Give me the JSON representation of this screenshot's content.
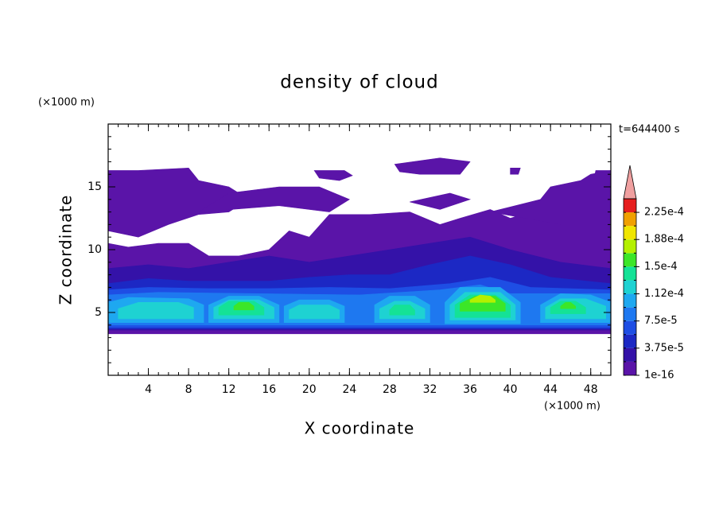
{
  "chart_data": {
    "type": "contour",
    "title": "density of cloud",
    "x_label": "X coordinate",
    "y_label": "Z coordinate",
    "x_unit": "(×1000 m)",
    "y_unit": "(×1000 m)",
    "time_label": "t=644400 s",
    "xlim": [
      0,
      50
    ],
    "ylim": [
      0,
      20
    ],
    "xticks": [
      4,
      8,
      12,
      16,
      20,
      24,
      28,
      32,
      36,
      40,
      44,
      48
    ],
    "yticks": [
      5,
      10,
      15
    ],
    "xminor_step": 1,
    "yminor_step": 1,
    "colorbar": {
      "levels": [
        1e-16,
        1.875e-05,
        3.75e-05,
        5.625e-05,
        7.5e-05,
        9.375e-05,
        0.0001125,
        0.00013125,
        0.00015,
        0.00016875,
        0.0001875,
        0.00020625,
        0.000225,
        0.00024375
      ],
      "colors": [
        "#5a14a8",
        "#3412a8",
        "#1c28c4",
        "#1e4ee4",
        "#1e78f0",
        "#1ea8f0",
        "#1ed2d2",
        "#14e296",
        "#3ce628",
        "#b4f000",
        "#f0e600",
        "#f0a000",
        "#e61e1e"
      ],
      "over_color": "#f0a0a0",
      "ticks": [
        {
          "value": 0.000225,
          "label": "2.25e-4"
        },
        {
          "value": 0.0001875,
          "label": "1.88e-4"
        },
        {
          "value": 0.00015,
          "label": "1.5e-4"
        },
        {
          "value": 0.0001125,
          "label": "1.12e-4"
        },
        {
          "value": 7.5e-05,
          "label": "7.5e-5"
        },
        {
          "value": 3.75e-05,
          "label": "3.75e-5"
        },
        1e-16
      ]
    },
    "regions": [
      {
        "value": 1e-16,
        "x": [
          0,
          50,
          50,
          48.5,
          48,
          45,
          42,
          40,
          38,
          35,
          33,
          30,
          26,
          22,
          20,
          18,
          16,
          13,
          10,
          8,
          5,
          2,
          0
        ],
        "z": [
          3.3,
          3.3,
          16.3,
          16.3,
          14.5,
          13.5,
          13,
          12.5,
          13.2,
          12.5,
          12,
          13,
          12.8,
          12.8,
          11,
          11.5,
          10,
          9.5,
          9.5,
          10.5,
          10.5,
          10.2,
          10.5
        ]
      },
      {
        "value": 1e-16,
        "x": [
          0,
          3,
          6,
          9,
          12,
          14,
          12,
          9,
          8,
          3,
          0
        ],
        "z": [
          11.5,
          11,
          12,
          12.8,
          13,
          14,
          15,
          15.5,
          16.5,
          16.3,
          16.3
        ]
      },
      {
        "value": 1e-16,
        "x": [
          9,
          17,
          22,
          24,
          21,
          17,
          12
        ],
        "z": [
          13,
          13.5,
          13,
          14,
          15,
          15,
          14.5
        ]
      },
      {
        "value": 1e-16,
        "x": [
          20.5,
          23.5,
          24.3,
          23,
          21
        ],
        "z": [
          16.3,
          16.3,
          15.9,
          15.5,
          15.7
        ]
      },
      {
        "value": 1e-16,
        "x": [
          28.5,
          33,
          36,
          35,
          31,
          29
        ],
        "z": [
          16.8,
          17.3,
          17,
          16,
          16,
          16.2
        ]
      },
      {
        "value": 1e-16,
        "x": [
          40,
          41,
          40.8,
          40
        ],
        "z": [
          16.5,
          16.5,
          16,
          16
        ]
      },
      {
        "value": 1e-16,
        "x": [
          38,
          43,
          44,
          47,
          48,
          50,
          50,
          45
        ],
        "z": [
          13,
          14,
          15,
          15.5,
          16,
          16.3,
          12,
          12
        ]
      },
      {
        "value": 1e-16,
        "x": [
          30,
          34,
          36,
          33
        ],
        "z": [
          13.8,
          14.5,
          14,
          13.2
        ]
      },
      {
        "value": 1.875e-05,
        "x": [
          0,
          50,
          50,
          45,
          40,
          36,
          32,
          28,
          24,
          20,
          16,
          12,
          8,
          4,
          0
        ],
        "z": [
          3.6,
          3.6,
          8.5,
          9,
          10,
          11,
          10.5,
          10,
          9.5,
          9,
          9.5,
          9,
          8.5,
          8.8,
          8.5
        ]
      },
      {
        "value": 3.75e-05,
        "x": [
          0,
          50,
          50,
          44,
          40,
          36,
          32,
          28,
          24,
          20,
          16,
          12,
          8,
          4,
          0
        ],
        "z": [
          3.7,
          3.7,
          7.3,
          7.8,
          8.8,
          9.5,
          8.8,
          8,
          8,
          7.8,
          7.5,
          7.5,
          7.5,
          7.7,
          7.3
        ]
      },
      {
        "value": 5.625e-05,
        "x": [
          0,
          50,
          50,
          42,
          38,
          34,
          28,
          22,
          16,
          10,
          4,
          0
        ],
        "z": [
          3.8,
          3.8,
          6.8,
          7,
          7.8,
          7.3,
          6.9,
          7,
          6.9,
          6.9,
          7,
          6.8
        ]
      },
      {
        "value": 7.5e-05,
        "x": [
          0,
          50,
          50,
          40,
          37,
          33,
          25,
          15,
          5,
          0
        ],
        "z": [
          4,
          4,
          6.5,
          6.5,
          7.2,
          6.8,
          6.4,
          6.5,
          6.6,
          6.4
        ]
      },
      {
        "value": 9.375e-05,
        "x": [
          0,
          9.5,
          9.5,
          8,
          2,
          0
        ],
        "z": [
          4.2,
          4.2,
          5.6,
          6.1,
          6.2,
          5.8
        ]
      },
      {
        "value": 9.375e-05,
        "x": [
          10,
          17,
          17,
          15,
          12,
          10
        ],
        "z": [
          4.2,
          4.2,
          5.6,
          6.3,
          6.3,
          5.6
        ]
      },
      {
        "value": 9.375e-05,
        "x": [
          17.5,
          23.5,
          23.5,
          22,
          19,
          17.5
        ],
        "z": [
          4.2,
          4.2,
          5.5,
          6,
          6,
          5.5
        ]
      },
      {
        "value": 9.375e-05,
        "x": [
          26.5,
          32,
          32,
          30.5,
          28,
          26.5
        ],
        "z": [
          4.2,
          4.2,
          5.6,
          6.3,
          6.3,
          5.6
        ]
      },
      {
        "value": 9.375e-05,
        "x": [
          33.5,
          41,
          41,
          39,
          35,
          33.5
        ],
        "z": [
          4.1,
          4.1,
          5.8,
          7,
          7,
          5.8
        ]
      },
      {
        "value": 9.375e-05,
        "x": [
          43,
          50,
          50,
          48,
          45,
          43
        ],
        "z": [
          4.2,
          4.2,
          5.8,
          6.4,
          6.5,
          5.6
        ]
      },
      {
        "value": 0.0001125,
        "x": [
          1,
          8.5,
          8.5,
          7,
          3,
          1
        ],
        "z": [
          4.5,
          4.5,
          5.4,
          5.8,
          5.8,
          5.3
        ]
      },
      {
        "value": 0.0001125,
        "x": [
          10.5,
          16.5,
          16.5,
          15,
          12,
          10.5
        ],
        "z": [
          4.5,
          4.5,
          5.4,
          6,
          6,
          5.4
        ]
      },
      {
        "value": 0.0001125,
        "x": [
          18,
          23,
          23,
          22,
          19,
          18
        ],
        "z": [
          4.5,
          4.5,
          5.2,
          5.6,
          5.6,
          5.2
        ]
      },
      {
        "value": 0.0001125,
        "x": [
          27,
          31.5,
          31.5,
          30,
          28.5,
          27
        ],
        "z": [
          4.5,
          4.5,
          5.3,
          5.9,
          5.9,
          5.3
        ]
      },
      {
        "value": 0.0001125,
        "x": [
          34,
          40.5,
          40.5,
          39,
          35.5,
          34
        ],
        "z": [
          4.4,
          4.4,
          5.6,
          6.6,
          6.6,
          5.6
        ]
      },
      {
        "value": 0.0001125,
        "x": [
          43.5,
          49.5,
          49.5,
          47.5,
          45,
          43.5
        ],
        "z": [
          4.5,
          4.5,
          5.5,
          6.1,
          6.1,
          5.4
        ]
      },
      {
        "value": 0.00013125,
        "x": [
          11,
          15.5,
          15.5,
          14.5,
          12,
          11
        ],
        "z": [
          4.8,
          4.8,
          5.4,
          5.9,
          5.9,
          5.4
        ]
      },
      {
        "value": 0.00013125,
        "x": [
          28,
          30.5,
          30.5,
          30,
          28.5,
          28
        ],
        "z": [
          4.8,
          4.8,
          5.2,
          5.6,
          5.6,
          5.2
        ]
      },
      {
        "value": 0.00013125,
        "x": [
          34.5,
          40,
          40,
          38.5,
          36,
          34.5
        ],
        "z": [
          4.6,
          4.6,
          5.6,
          6.4,
          6.4,
          5.6
        ]
      },
      {
        "value": 0.00013125,
        "x": [
          44,
          47.5,
          47.5,
          46.5,
          45,
          44
        ],
        "z": [
          4.9,
          4.9,
          5.4,
          5.9,
          5.9,
          5.4
        ]
      },
      {
        "value": 0.00015,
        "x": [
          12.5,
          14.5,
          14.5,
          14,
          13,
          12.5
        ],
        "z": [
          5.2,
          5.2,
          5.5,
          5.8,
          5.8,
          5.5
        ]
      },
      {
        "value": 0.00015,
        "x": [
          35,
          39.5,
          39.5,
          38.5,
          36.5,
          35
        ],
        "z": [
          5.1,
          5.1,
          5.7,
          6.3,
          6.3,
          5.7
        ]
      },
      {
        "value": 0.00015,
        "x": [
          45,
          46.5,
          46.5,
          46,
          45.5,
          45
        ],
        "z": [
          5.3,
          5.3,
          5.5,
          5.8,
          5.8,
          5.5
        ]
      },
      {
        "value": 0.00016875,
        "x": [
          36,
          38.5,
          38.5,
          38,
          37,
          36
        ],
        "z": [
          5.8,
          5.8,
          6,
          6.3,
          6.4,
          6
        ]
      }
    ]
  }
}
